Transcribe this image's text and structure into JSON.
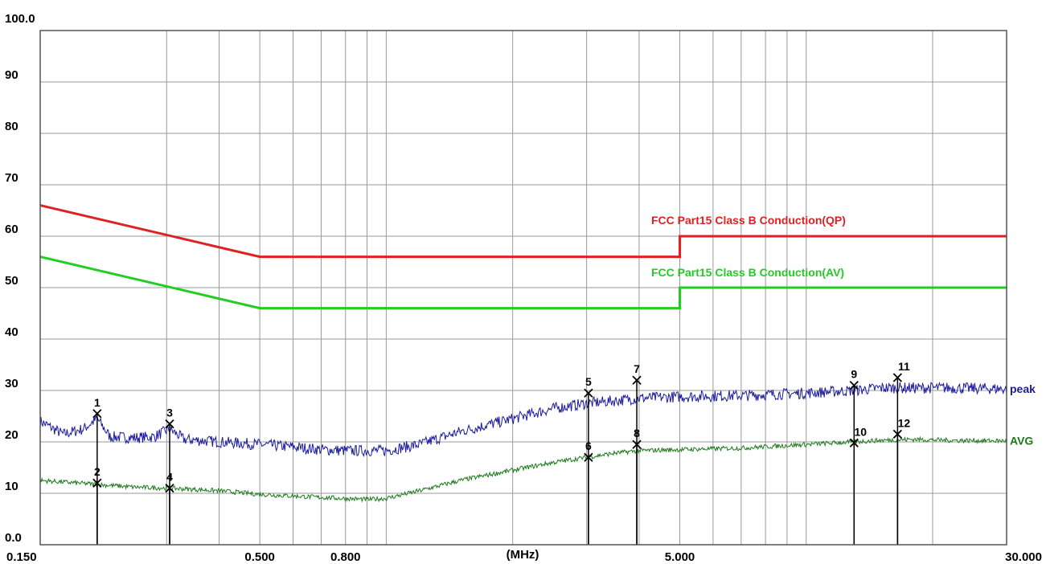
{
  "chart_data": {
    "type": "line",
    "title": "",
    "xlabel": "(MHz)",
    "ylabel": "",
    "x_scale": "log",
    "xlim": [
      0.15,
      30.0
    ],
    "ylim": [
      0.0,
      100.0
    ],
    "grid": true,
    "y_tick_labels": [
      "0.0",
      "10",
      "20",
      "30",
      "40",
      "50",
      "60",
      "70",
      "80",
      "90",
      "100.0"
    ],
    "y_ticks": [
      0,
      10,
      20,
      30,
      40,
      50,
      60,
      70,
      80,
      90,
      100
    ],
    "x_tick_labels": [
      {
        "value": 0.15,
        "label": "0.150"
      },
      {
        "value": 0.5,
        "label": "0.500"
      },
      {
        "value": 0.8,
        "label": "0.800"
      },
      {
        "value": 5.0,
        "label": "5.000"
      },
      {
        "value": 30.0,
        "label": "30.000"
      }
    ],
    "x_gridlines": [
      0.3,
      0.4,
      0.5,
      0.6,
      0.7,
      0.8,
      0.9,
      1,
      2,
      3,
      4,
      5,
      6,
      7,
      8,
      9,
      10,
      20
    ],
    "limits": [
      {
        "name": "FCC Part15 Class B Conduction(QP)",
        "color": "#dd2222",
        "points": [
          [
            0.15,
            66.0
          ],
          [
            0.5,
            56.0
          ],
          [
            5.0,
            56.0
          ],
          [
            5.0,
            60.0
          ],
          [
            30.0,
            60.0
          ]
        ]
      },
      {
        "name": "FCC Part15 Class B Conduction(AV)",
        "color": "#22cc22",
        "points": [
          [
            0.15,
            56.0
          ],
          [
            0.5,
            46.0
          ],
          [
            5.0,
            46.0
          ],
          [
            5.0,
            50.0
          ],
          [
            30.0,
            50.0
          ]
        ]
      }
    ],
    "series": [
      {
        "name": "peak",
        "color": "#1a1aa0",
        "points": [
          [
            0.15,
            24.0
          ],
          [
            0.17,
            21.5
          ],
          [
            0.19,
            22.5
          ],
          [
            0.205,
            24.5
          ],
          [
            0.22,
            21.0
          ],
          [
            0.25,
            20.8
          ],
          [
            0.28,
            21.0
          ],
          [
            0.305,
            22.5
          ],
          [
            0.33,
            20.5
          ],
          [
            0.4,
            20.0
          ],
          [
            0.5,
            19.5
          ],
          [
            0.6,
            19.0
          ],
          [
            0.7,
            18.5
          ],
          [
            0.8,
            18.3
          ],
          [
            1.0,
            18.3
          ],
          [
            1.2,
            19.5
          ],
          [
            1.5,
            22.0
          ],
          [
            2.0,
            24.5
          ],
          [
            2.5,
            26.5
          ],
          [
            3.0,
            27.5
          ],
          [
            3.5,
            28.0
          ],
          [
            4.0,
            28.5
          ],
          [
            5.0,
            28.8
          ],
          [
            7.0,
            29.0
          ],
          [
            10.0,
            29.5
          ],
          [
            13.0,
            30.0
          ],
          [
            15.0,
            30.5
          ],
          [
            18.0,
            30.5
          ],
          [
            22.0,
            30.5
          ],
          [
            30.0,
            30.3
          ]
        ]
      },
      {
        "name": "AVG",
        "color": "#1a7a1a",
        "points": [
          [
            0.15,
            12.5
          ],
          [
            0.2,
            11.8
          ],
          [
            0.25,
            11.2
          ],
          [
            0.305,
            11.0
          ],
          [
            0.4,
            10.5
          ],
          [
            0.5,
            9.8
          ],
          [
            0.7,
            9.2
          ],
          [
            0.9,
            8.8
          ],
          [
            1.0,
            9.0
          ],
          [
            1.2,
            10.5
          ],
          [
            1.5,
            12.5
          ],
          [
            2.0,
            14.5
          ],
          [
            2.5,
            16.0
          ],
          [
            3.0,
            17.0
          ],
          [
            3.5,
            17.8
          ],
          [
            4.0,
            18.3
          ],
          [
            5.0,
            18.5
          ],
          [
            7.0,
            18.8
          ],
          [
            10.0,
            19.5
          ],
          [
            13.0,
            20.0
          ],
          [
            15.0,
            20.3
          ],
          [
            18.0,
            20.5
          ],
          [
            22.0,
            20.3
          ],
          [
            30.0,
            20.2
          ]
        ]
      }
    ],
    "markers": [
      {
        "label": "1",
        "x": 0.205,
        "y": 25.5
      },
      {
        "label": "2",
        "x": 0.205,
        "y": 12.0
      },
      {
        "label": "3",
        "x": 0.305,
        "y": 23.5
      },
      {
        "label": "4",
        "x": 0.305,
        "y": 11.0
      },
      {
        "label": "5",
        "x": 3.03,
        "y": 29.5
      },
      {
        "label": "6",
        "x": 3.03,
        "y": 17.0
      },
      {
        "label": "7",
        "x": 3.95,
        "y": 32.0
      },
      {
        "label": "8",
        "x": 3.95,
        "y": 19.5
      },
      {
        "label": "9",
        "x": 13.0,
        "y": 31.0
      },
      {
        "label": "10",
        "x": 13.0,
        "y": 19.8
      },
      {
        "label": "11",
        "x": 16.5,
        "y": 32.5
      },
      {
        "label": "12",
        "x": 16.5,
        "y": 21.5
      }
    ]
  }
}
